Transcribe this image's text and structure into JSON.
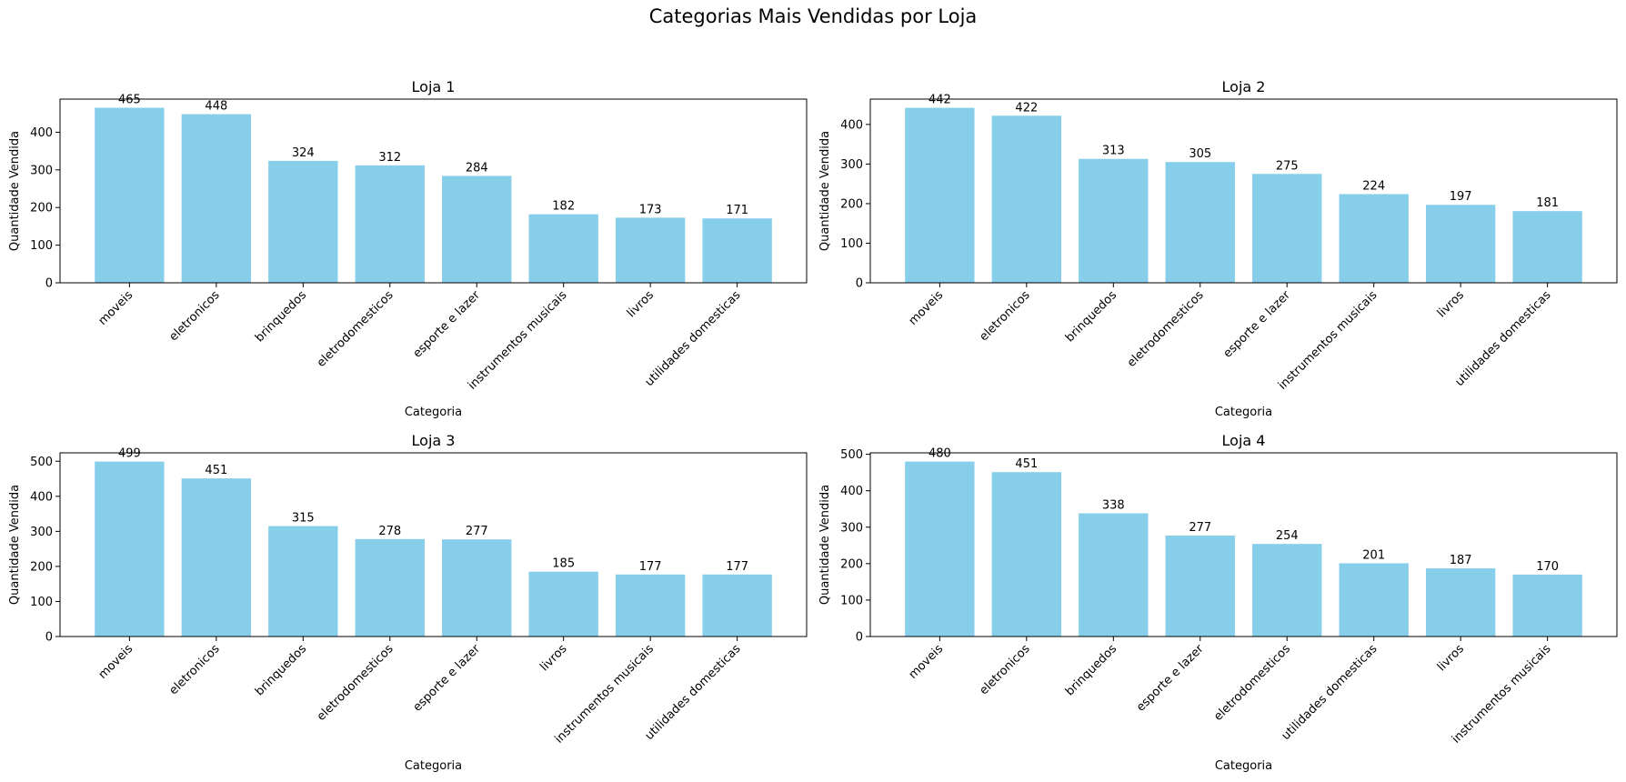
{
  "figure": {
    "suptitle": "Categorias Mais Vendidas por Loja",
    "bar_color": "#87CEEB"
  },
  "chart_data": [
    {
      "type": "bar",
      "title": "Loja 1",
      "xlabel": "Categoria",
      "ylabel": "Quantidade Vendida",
      "categories": [
        "moveis",
        "eletronicos",
        "brinquedos",
        "eletrodomesticos",
        "esporte e lazer",
        "instrumentos musicais",
        "livros",
        "utilidades domesticas"
      ],
      "values": [
        465,
        448,
        324,
        312,
        284,
        182,
        173,
        171
      ],
      "ylim": [
        0,
        488
      ],
      "yticks": [
        0,
        100,
        200,
        300,
        400
      ],
      "grid": false
    },
    {
      "type": "bar",
      "title": "Loja 2",
      "xlabel": "Categoria",
      "ylabel": "Quantidade Vendida",
      "categories": [
        "moveis",
        "eletronicos",
        "brinquedos",
        "eletrodomesticos",
        "esporte e lazer",
        "instrumentos musicais",
        "livros",
        "utilidades domesticas"
      ],
      "values": [
        442,
        422,
        313,
        305,
        275,
        224,
        197,
        181
      ],
      "ylim": [
        0,
        464
      ],
      "yticks": [
        0,
        100,
        200,
        300,
        400
      ],
      "grid": false
    },
    {
      "type": "bar",
      "title": "Loja 3",
      "xlabel": "Categoria",
      "ylabel": "Quantidade Vendida",
      "categories": [
        "moveis",
        "eletronicos",
        "brinquedos",
        "eletrodomesticos",
        "esporte e lazer",
        "livros",
        "instrumentos musicais",
        "utilidades domesticas"
      ],
      "values": [
        499,
        451,
        315,
        278,
        277,
        185,
        177,
        177
      ],
      "ylim": [
        0,
        524
      ],
      "yticks": [
        0,
        100,
        200,
        300,
        400,
        500
      ],
      "grid": false
    },
    {
      "type": "bar",
      "title": "Loja 4",
      "xlabel": "Categoria",
      "ylabel": "Quantidade Vendida",
      "categories": [
        "moveis",
        "eletronicos",
        "brinquedos",
        "esporte e lazer",
        "eletrodomesticos",
        "utilidades domesticas",
        "livros",
        "instrumentos musicais"
      ],
      "values": [
        480,
        451,
        338,
        277,
        254,
        201,
        187,
        170
      ],
      "ylim": [
        0,
        504
      ],
      "yticks": [
        0,
        100,
        200,
        300,
        400,
        500
      ],
      "grid": false
    }
  ]
}
